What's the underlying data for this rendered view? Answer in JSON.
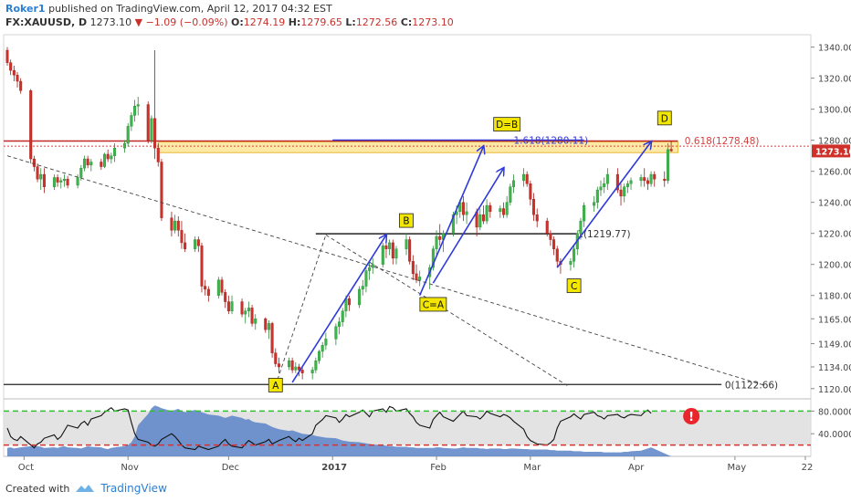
{
  "header": {
    "user": "Roker1",
    "published": "published on TradingView.com, April 12, 2017 04:32 EST",
    "symbol": "FX:XAUUSD, D",
    "last": "1273.10",
    "change_arrow": "▼",
    "change": "−1.09 (−0.09%)",
    "o_label": "O:",
    "o_value": "1274.19",
    "h_label": "H:",
    "h_value": "1279.65",
    "l_label": "L:",
    "l_value": "1272.56",
    "c_label": "C:",
    "c_value": "1273.10"
  },
  "footer": {
    "created_with": "Created with",
    "brand": "TradingView"
  },
  "colors": {
    "up": "#3cb54a",
    "down": "#d0302a",
    "arrow": "#2e3ad9",
    "band": "#fce9a6",
    "label_bg": "#f3e600",
    "rsi_band": "#dcdcdc",
    "volume": "#5b84c9"
  },
  "chart_data": {
    "type": "candlestick",
    "y_ticks": [
      "1340.00",
      "1320.00",
      "1300.00",
      "1280.00",
      "1260.00",
      "1240.00",
      "1220.00",
      "1200.00",
      "1180.00",
      "1165.00",
      "1149.00",
      "1134.00",
      "1120.00"
    ],
    "x_ticks": [
      "Oct",
      "Nov",
      "Dec",
      "2017",
      "Feb",
      "Mar",
      "Apr",
      "May",
      "22"
    ],
    "ylim": [
      1114,
      1348
    ],
    "last_price_label": "1273.10",
    "x_dates": [
      "2016-09-26",
      "2016-09-27",
      "2016-09-28",
      "2016-09-29",
      "2016-09-30",
      "2016-10-03",
      "2016-10-04",
      "2016-10-05",
      "2016-10-06",
      "2016-10-07",
      "2016-10-10",
      "2016-10-11",
      "2016-10-12",
      "2016-10-13",
      "2016-10-14",
      "2016-10-17",
      "2016-10-18",
      "2016-10-19",
      "2016-10-20",
      "2016-10-21",
      "2016-10-24",
      "2016-10-25",
      "2016-10-26",
      "2016-10-27",
      "2016-10-28",
      "2016-10-31",
      "2016-11-01",
      "2016-11-02",
      "2016-11-03",
      "2016-11-04",
      "2016-11-07",
      "2016-11-08",
      "2016-11-09",
      "2016-11-10",
      "2016-11-11",
      "2016-11-14",
      "2016-11-15",
      "2016-11-16",
      "2016-11-17",
      "2016-11-18",
      "2016-11-21",
      "2016-11-22",
      "2016-11-23",
      "2016-11-24",
      "2016-11-25",
      "2016-11-28",
      "2016-11-29",
      "2016-11-30",
      "2016-12-01",
      "2016-12-02",
      "2016-12-05",
      "2016-12-06",
      "2016-12-07",
      "2016-12-08",
      "2016-12-09",
      "2016-12-12",
      "2016-12-13",
      "2016-12-14",
      "2016-12-15",
      "2016-12-16",
      "2016-12-19",
      "2016-12-20",
      "2016-12-21",
      "2016-12-22",
      "2016-12-23",
      "2016-12-26",
      "2016-12-27",
      "2016-12-28",
      "2016-12-29",
      "2016-12-30",
      "2017-01-02",
      "2017-01-03",
      "2017-01-04",
      "2017-01-05",
      "2017-01-06",
      "2017-01-09",
      "2017-01-10",
      "2017-01-11",
      "2017-01-12",
      "2017-01-13",
      "2017-01-16",
      "2017-01-17",
      "2017-01-18",
      "2017-01-19",
      "2017-01-20",
      "2017-01-23",
      "2017-01-24",
      "2017-01-25",
      "2017-01-26",
      "2017-01-27",
      "2017-01-30",
      "2017-01-31",
      "2017-02-01",
      "2017-02-02",
      "2017-02-03",
      "2017-02-06",
      "2017-02-07",
      "2017-02-08",
      "2017-02-09",
      "2017-02-10",
      "2017-02-13",
      "2017-02-14",
      "2017-02-15",
      "2017-02-16",
      "2017-02-17",
      "2017-02-20",
      "2017-02-21",
      "2017-02-22",
      "2017-02-23",
      "2017-02-24",
      "2017-02-27",
      "2017-02-28",
      "2017-03-01",
      "2017-03-02",
      "2017-03-03",
      "2017-03-06",
      "2017-03-07",
      "2017-03-08",
      "2017-03-09",
      "2017-03-10",
      "2017-03-13",
      "2017-03-14",
      "2017-03-15",
      "2017-03-16",
      "2017-03-17",
      "2017-03-20",
      "2017-03-21",
      "2017-03-22",
      "2017-03-23",
      "2017-03-24",
      "2017-03-27",
      "2017-03-28",
      "2017-03-29",
      "2017-03-30",
      "2017-03-31",
      "2017-04-03",
      "2017-04-04",
      "2017-04-05",
      "2017-04-06",
      "2017-04-07",
      "2017-04-10",
      "2017-04-11",
      "2017-04-12"
    ],
    "x_first": "2016-09-26",
    "x_last_axis": "2017-05-22",
    "candles": [
      [
        1338,
        1340,
        1328,
        1330
      ],
      [
        1330,
        1332,
        1322,
        1325
      ],
      [
        1325,
        1328,
        1318,
        1322
      ],
      [
        1322,
        1324,
        1314,
        1318
      ],
      [
        1318,
        1320,
        1310,
        1312
      ],
      [
        1312,
        1313,
        1265,
        1268
      ],
      [
        1268,
        1270,
        1260,
        1263
      ],
      [
        1263,
        1265,
        1253,
        1255
      ],
      [
        1255,
        1262,
        1248,
        1258
      ],
      [
        1258,
        1262,
        1246,
        1250
      ],
      [
        1250,
        1258,
        1248,
        1256
      ],
      [
        1256,
        1258,
        1250,
        1253
      ],
      [
        1253,
        1256,
        1249,
        1254
      ],
      [
        1254,
        1258,
        1250,
        1255
      ],
      [
        1255,
        1257,
        1249,
        1251
      ],
      [
        1251,
        1258,
        1249,
        1256
      ],
      [
        1256,
        1264,
        1254,
        1262
      ],
      [
        1262,
        1270,
        1260,
        1268
      ],
      [
        1268,
        1270,
        1262,
        1264
      ],
      [
        1264,
        1268,
        1260,
        1266
      ],
      [
        1266,
        1268,
        1261,
        1263
      ],
      [
        1263,
        1272,
        1262,
        1271
      ],
      [
        1271,
        1274,
        1266,
        1268
      ],
      [
        1268,
        1272,
        1265,
        1270
      ],
      [
        1270,
        1278,
        1266,
        1275
      ],
      [
        1275,
        1280,
        1272,
        1278
      ],
      [
        1278,
        1291,
        1276,
        1289
      ],
      [
        1289,
        1298,
        1286,
        1296
      ],
      [
        1296,
        1306,
        1292,
        1302
      ],
      [
        1302,
        1308,
        1296,
        1303
      ],
      [
        1303,
        1305,
        1278,
        1280
      ],
      [
        1280,
        1296,
        1278,
        1294
      ],
      [
        1294,
        1338,
        1268,
        1275
      ],
      [
        1275,
        1278,
        1263,
        1266
      ],
      [
        1266,
        1268,
        1228,
        1230
      ],
      [
        1230,
        1234,
        1218,
        1222
      ],
      [
        1222,
        1232,
        1220,
        1228
      ],
      [
        1228,
        1231,
        1218,
        1222
      ],
      [
        1222,
        1228,
        1210,
        1214
      ],
      [
        1214,
        1220,
        1208,
        1210
      ],
      [
        1210,
        1218,
        1208,
        1216
      ],
      [
        1216,
        1218,
        1208,
        1212
      ],
      [
        1212,
        1214,
        1182,
        1186
      ],
      [
        1186,
        1190,
        1180,
        1184
      ],
      [
        1184,
        1186,
        1176,
        1180
      ],
      [
        1180,
        1192,
        1178,
        1190
      ],
      [
        1190,
        1192,
        1180,
        1182
      ],
      [
        1182,
        1184,
        1172,
        1176
      ],
      [
        1176,
        1180,
        1168,
        1170
      ],
      [
        1170,
        1180,
        1168,
        1176
      ],
      [
        1176,
        1178,
        1166,
        1168
      ],
      [
        1168,
        1172,
        1162,
        1170
      ],
      [
        1170,
        1176,
        1166,
        1172
      ],
      [
        1172,
        1174,
        1160,
        1162
      ],
      [
        1162,
        1168,
        1158,
        1165
      ],
      [
        1165,
        1166,
        1156,
        1158
      ],
      [
        1158,
        1164,
        1152,
        1162
      ],
      [
        1162,
        1163,
        1140,
        1143
      ],
      [
        1143,
        1146,
        1134,
        1136
      ],
      [
        1136,
        1140,
        1130,
        1134
      ],
      [
        1134,
        1140,
        1132,
        1138
      ],
      [
        1138,
        1140,
        1130,
        1132
      ],
      [
        1132,
        1137,
        1130,
        1134
      ],
      [
        1134,
        1136,
        1128,
        1132
      ],
      [
        1132,
        1134,
        1126,
        1130
      ],
      [
        1130,
        1134,
        1126,
        1132
      ],
      [
        1132,
        1140,
        1130,
        1138
      ],
      [
        1138,
        1145,
        1136,
        1144
      ],
      [
        1144,
        1150,
        1140,
        1148
      ],
      [
        1148,
        1156,
        1145,
        1152
      ],
      [
        1152,
        1162,
        1148,
        1160
      ],
      [
        1160,
        1166,
        1155,
        1163
      ],
      [
        1163,
        1172,
        1160,
        1170
      ],
      [
        1170,
        1180,
        1166,
        1178
      ],
      [
        1178,
        1180,
        1170,
        1174
      ],
      [
        1174,
        1186,
        1172,
        1184
      ],
      [
        1184,
        1190,
        1180,
        1186
      ],
      [
        1186,
        1200,
        1182,
        1196
      ],
      [
        1196,
        1202,
        1190,
        1198
      ],
      [
        1198,
        1204,
        1194,
        1200
      ],
      [
        1200,
        1214,
        1198,
        1212
      ],
      [
        1212,
        1218,
        1204,
        1210
      ],
      [
        1210,
        1216,
        1206,
        1214
      ],
      [
        1214,
        1216,
        1200,
        1204
      ],
      [
        1204,
        1212,
        1200,
        1210
      ],
      [
        1210,
        1220,
        1206,
        1216
      ],
      [
        1216,
        1218,
        1200,
        1202
      ],
      [
        1202,
        1206,
        1190,
        1194
      ],
      [
        1194,
        1200,
        1188,
        1190
      ],
      [
        1190,
        1196,
        1186,
        1192
      ],
      [
        1192,
        1200,
        1184,
        1198
      ],
      [
        1198,
        1212,
        1196,
        1210
      ],
      [
        1210,
        1222,
        1206,
        1218
      ],
      [
        1218,
        1226,
        1212,
        1216
      ],
      [
        1216,
        1222,
        1208,
        1220
      ],
      [
        1220,
        1234,
        1218,
        1232
      ],
      [
        1232,
        1238,
        1226,
        1234
      ],
      [
        1234,
        1242,
        1230,
        1240
      ],
      [
        1240,
        1244,
        1228,
        1232
      ],
      [
        1232,
        1240,
        1226,
        1234
      ],
      [
        1234,
        1236,
        1218,
        1224
      ],
      [
        1224,
        1236,
        1222,
        1232
      ],
      [
        1232,
        1238,
        1226,
        1228
      ],
      [
        1228,
        1242,
        1226,
        1238
      ],
      [
        1238,
        1240,
        1230,
        1234
      ],
      [
        1234,
        1238,
        1230,
        1236
      ],
      [
        1236,
        1240,
        1230,
        1232
      ],
      [
        1232,
        1244,
        1230,
        1240
      ],
      [
        1240,
        1252,
        1238,
        1250
      ],
      [
        1250,
        1258,
        1246,
        1254
      ],
      [
        1254,
        1262,
        1250,
        1258
      ],
      [
        1258,
        1260,
        1250,
        1252
      ],
      [
        1252,
        1254,
        1238,
        1242
      ],
      [
        1242,
        1246,
        1228,
        1232
      ],
      [
        1232,
        1236,
        1224,
        1228
      ],
      [
        1228,
        1230,
        1218,
        1220
      ],
      [
        1220,
        1222,
        1212,
        1216
      ],
      [
        1216,
        1218,
        1206,
        1210
      ],
      [
        1210,
        1212,
        1198,
        1202
      ],
      [
        1202,
        1204,
        1194,
        1200
      ],
      [
        1200,
        1204,
        1196,
        1202
      ],
      [
        1202,
        1212,
        1198,
        1210
      ],
      [
        1210,
        1222,
        1206,
        1220
      ],
      [
        1220,
        1230,
        1216,
        1228
      ],
      [
        1228,
        1240,
        1224,
        1238
      ],
      [
        1238,
        1244,
        1234,
        1240
      ],
      [
        1240,
        1250,
        1236,
        1248
      ],
      [
        1248,
        1254,
        1244,
        1250
      ],
      [
        1250,
        1256,
        1246,
        1252
      ],
      [
        1252,
        1262,
        1248,
        1258
      ],
      [
        1258,
        1262,
        1246,
        1248
      ],
      [
        1248,
        1252,
        1238,
        1244
      ],
      [
        1244,
        1252,
        1240,
        1250
      ],
      [
        1250,
        1254,
        1246,
        1252
      ],
      [
        1252,
        1256,
        1248,
        1254
      ],
      [
        1254,
        1258,
        1250,
        1256
      ],
      [
        1256,
        1262,
        1250,
        1254
      ],
      [
        1254,
        1256,
        1248,
        1252
      ],
      [
        1252,
        1260,
        1250,
        1258
      ],
      [
        1258,
        1260,
        1250,
        1255
      ],
      [
        1255,
        1260,
        1250,
        1254
      ],
      [
        1254,
        1278,
        1252,
        1274
      ],
      [
        1274.19,
        1279.65,
        1272.56,
        1273.1
      ]
    ],
    "horizontal_levels": [
      {
        "price": 1122.66,
        "label": "0(1122.66)"
      },
      {
        "price": 1219.77,
        "label": "1(1219.77)"
      },
      {
        "price": 1280.11,
        "label": "1.618(1280.11)"
      },
      {
        "price": 1278.48,
        "label": "0.618(1278.48)"
      }
    ],
    "resistance_band": [
      1272,
      1279
    ],
    "wave_labels": [
      {
        "text": "A",
        "date": "2016-12-15",
        "price": 1122
      },
      {
        "text": "B",
        "date": "2017-01-23",
        "price": 1228
      },
      {
        "text": "C=A",
        "date": "2017-01-31",
        "price": 1174
      },
      {
        "text": "D=B",
        "date": "2017-02-22",
        "price": 1290
      },
      {
        "text": "C",
        "date": "2017-03-14",
        "price": 1186
      },
      {
        "text": "D",
        "date": "2017-04-10",
        "price": 1294
      }
    ],
    "arrows": [
      {
        "from": [
          "2016-12-20",
          1124
        ],
        "to": [
          "2017-01-17",
          1219
        ]
      },
      {
        "from": [
          "2017-01-27",
          1180
        ],
        "to": [
          "2017-02-15",
          1276
        ]
      },
      {
        "from": [
          "2017-01-31",
          1188
        ],
        "to": [
          "2017-02-21",
          1262
        ]
      },
      {
        "from": [
          "2017-03-09",
          1198
        ],
        "to": [
          "2017-04-06",
          1279
        ]
      }
    ],
    "indicator": {
      "ticks": [
        "80.0000",
        "40.0000"
      ],
      "ylim": [
        0,
        100
      ],
      "upper_level": 80,
      "lower_level": 20,
      "oscillator": [
        50,
        35,
        30,
        28,
        35,
        20,
        15,
        22,
        25,
        32,
        38,
        30,
        35,
        45,
        55,
        50,
        58,
        62,
        55,
        66,
        72,
        78,
        82,
        86,
        80,
        84,
        82,
        60,
        40,
        30,
        25,
        20,
        18,
        22,
        30,
        40,
        35,
        28,
        20,
        15,
        12,
        18,
        16,
        14,
        12,
        18,
        25,
        30,
        22,
        18,
        15,
        22,
        28,
        24,
        20,
        26,
        30,
        22,
        25,
        28,
        35,
        30,
        26,
        32,
        28,
        40,
        55,
        60,
        65,
        72,
        68,
        60,
        66,
        74,
        70,
        78,
        82,
        76,
        70,
        80,
        84,
        78,
        88,
        86,
        80,
        84,
        76,
        70,
        60,
        55,
        50,
        65,
        72,
        78,
        70,
        62,
        68,
        74,
        80,
        72,
        70,
        66,
        72,
        80,
        76,
        70,
        74,
        72,
        68,
        62,
        48,
        35,
        28,
        25,
        22,
        20,
        24,
        30,
        50,
        62,
        70,
        75,
        70,
        66,
        74,
        78,
        72,
        70,
        66,
        72,
        74,
        70,
        68,
        72,
        74,
        72,
        78,
        82,
        76
      ],
      "volume": [
        15,
        16,
        14,
        15,
        16,
        18,
        20,
        18,
        17,
        15,
        16,
        15,
        17,
        18,
        16,
        15,
        14,
        16,
        18,
        17,
        16,
        14,
        13,
        15,
        16,
        18,
        20,
        25,
        35,
        55,
        75,
        85,
        90,
        88,
        85,
        80,
        82,
        84,
        80,
        78,
        82,
        80,
        78,
        76,
        74,
        72,
        70,
        68,
        70,
        72,
        68,
        65,
        66,
        62,
        60,
        58,
        55,
        52,
        50,
        48,
        45,
        46,
        44,
        42,
        40,
        38,
        36,
        35,
        34,
        33,
        32,
        30,
        28,
        27,
        26,
        25,
        24,
        23,
        22,
        21,
        20,
        19,
        18,
        18,
        17,
        17,
        16,
        16,
        15,
        15,
        15,
        15,
        16,
        16,
        15,
        14,
        14,
        15,
        16,
        15,
        15,
        14,
        14,
        13,
        14,
        14,
        13,
        13,
        14,
        14,
        13,
        13,
        12,
        12,
        12,
        12,
        11,
        11,
        10,
        10,
        10,
        9,
        9,
        9,
        8,
        8,
        8,
        8,
        7,
        7,
        7,
        7,
        8,
        8,
        9,
        10,
        12,
        14,
        16
      ]
    }
  }
}
